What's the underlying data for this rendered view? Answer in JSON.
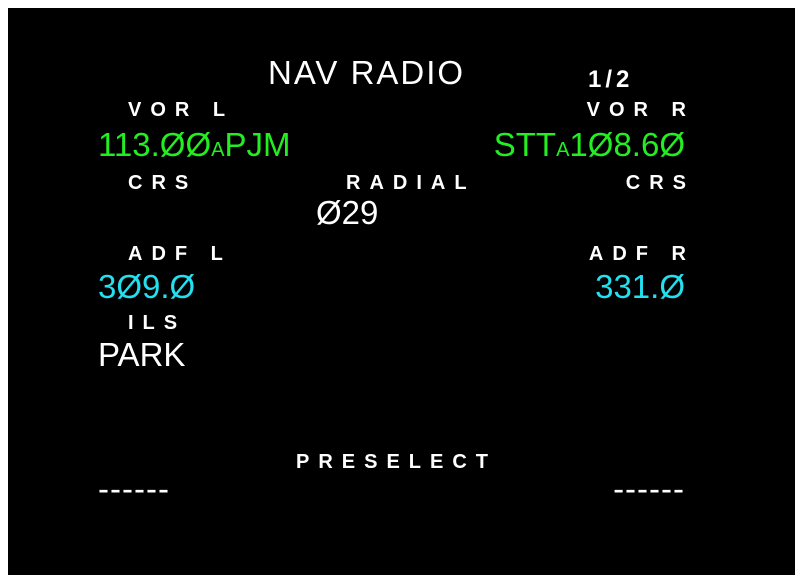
{
  "header": {
    "title": "NAV RADIO",
    "page": "1/2"
  },
  "vor_l": {
    "label": "VOR L",
    "frequency": "113.ØØ",
    "mode": "A",
    "ident": "PJM"
  },
  "vor_r": {
    "label": "VOR R",
    "ident": "STT",
    "mode": "A",
    "frequency": "1Ø8.6Ø"
  },
  "crs_l": {
    "label": "CRS"
  },
  "radial": {
    "label": "RADIAL",
    "value": "Ø29"
  },
  "crs_r": {
    "label": "CRS"
  },
  "adf_l": {
    "label": "ADF L",
    "frequency": "3Ø9.Ø"
  },
  "adf_r": {
    "label": "ADF R",
    "frequency": "331.Ø"
  },
  "ils": {
    "label": "ILS",
    "value": "PARK"
  },
  "preselect": {
    "label": "PRESELECT",
    "left": "------",
    "right": "------"
  }
}
